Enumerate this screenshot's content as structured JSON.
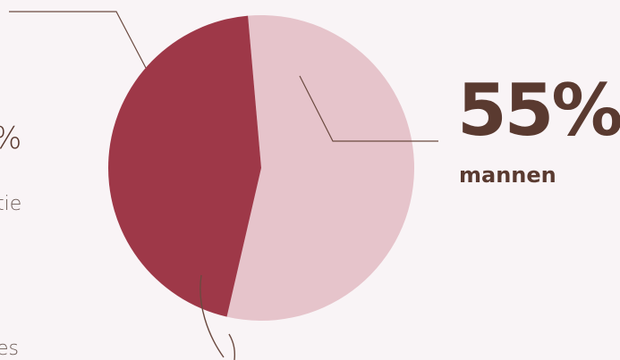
{
  "colors": {
    "background": "#f9f4f6",
    "slice_dark": "#9e3848",
    "slice_light": "#e6c4cb",
    "leader_line": "#6b4a40",
    "text_dark": "#5a3a30"
  },
  "callout": {
    "percent": "55%",
    "label": "mannen"
  },
  "cut_off_text": {
    "percent_fragment": "%",
    "line1_fragment": "tie",
    "line2_fragment": "es"
  },
  "chart_data": {
    "type": "pie",
    "title": "",
    "slices": [
      {
        "label": "mannen",
        "value": 55,
        "color": "#e6c4cb"
      },
      {
        "label": "",
        "value": 45,
        "color": "#9e3848"
      }
    ],
    "data_labels": [
      "55%"
    ],
    "legend": "none"
  }
}
